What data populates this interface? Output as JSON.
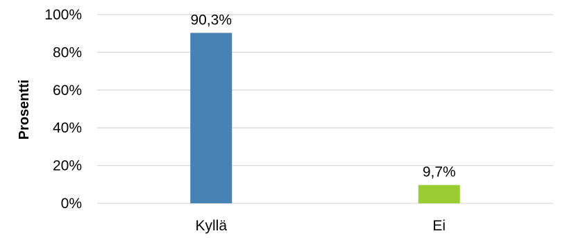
{
  "chart_data": {
    "type": "bar",
    "title": "",
    "xlabel": "",
    "ylabel": "Prosentti",
    "categories": [
      "Kyllä",
      "Ei"
    ],
    "values": [
      90.3,
      9.7
    ],
    "data_labels": [
      "90,3%",
      "9,7%"
    ],
    "colors": [
      "#4682b4",
      "#9acd32"
    ],
    "ylim": [
      0,
      100
    ],
    "yticks": [
      0,
      20,
      40,
      60,
      80,
      100
    ],
    "ytick_labels": [
      "0%",
      "20%",
      "40%",
      "60%",
      "80%",
      "100%"
    ],
    "grid": true,
    "legend": "none"
  }
}
